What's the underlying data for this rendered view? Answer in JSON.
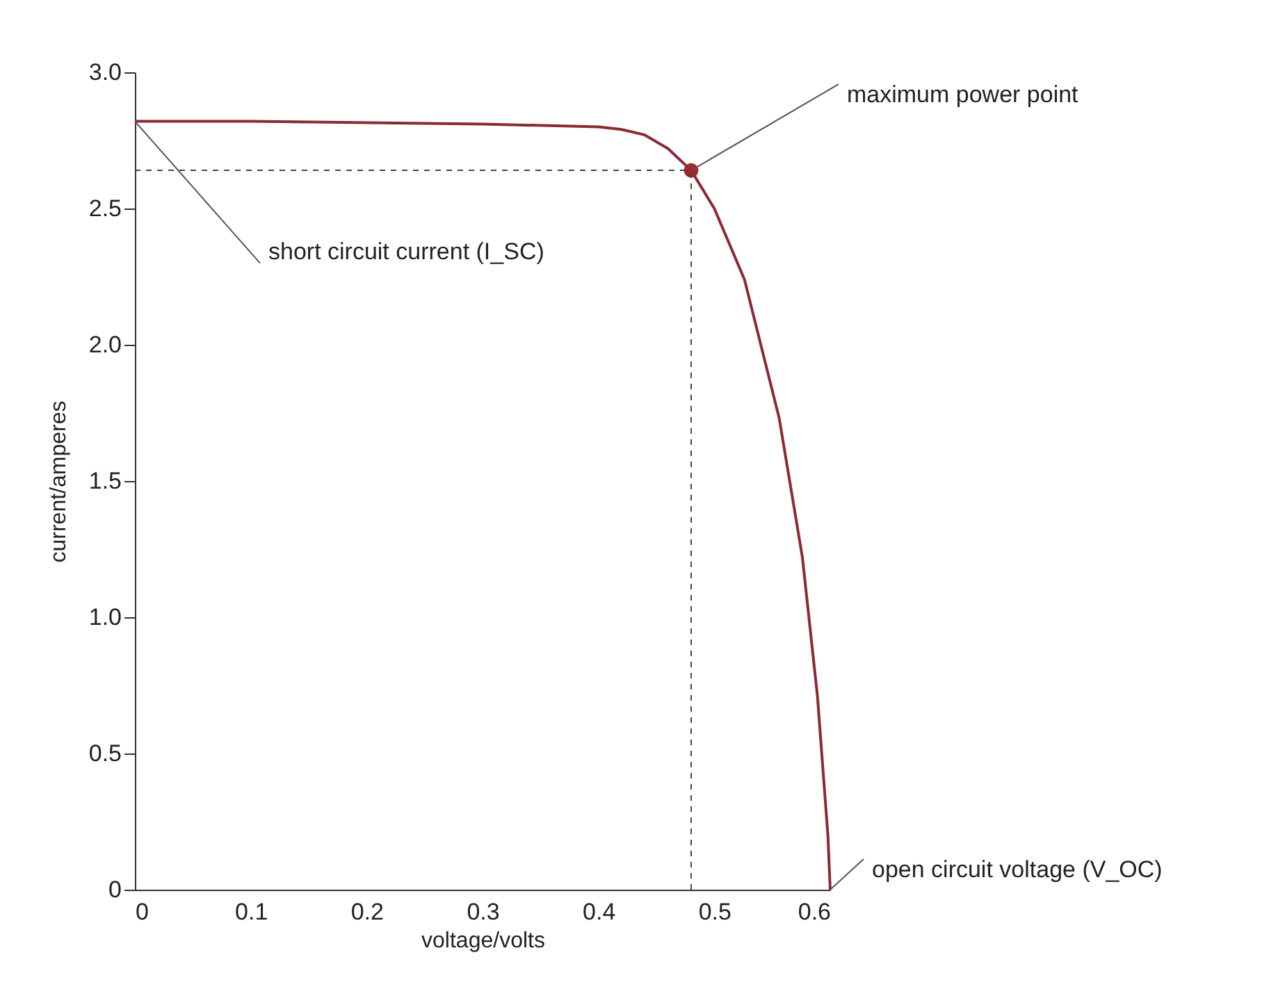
{
  "chart_data": {
    "type": "line",
    "xlabel": "voltage/volts",
    "ylabel": "current/amperes",
    "xlim": [
      0,
      0.6
    ],
    "ylim": [
      0,
      3.0
    ],
    "xticks": [
      0,
      0.1,
      0.2,
      0.3,
      0.4,
      0.5,
      0.6
    ],
    "yticks": [
      0,
      0.5,
      {
        "value": 1,
        "label": "1.0"
      },
      1.5,
      {
        "value": 2,
        "label": "2.0"
      },
      2.5,
      {
        "value": 3,
        "label": "3.0"
      }
    ],
    "grid": false,
    "marker": "none",
    "line_style": "solid",
    "series": [
      {
        "color": "#8b2a35",
        "x": [
          0,
          0.1,
          0.2,
          0.3,
          0.4,
          0.42,
          0.44,
          0.46,
          0.48,
          0.5,
          0.526,
          0.556,
          0.576,
          0.589,
          0.598,
          0.6
        ],
        "values": [
          2.82,
          2.82,
          2.815,
          2.81,
          2.8,
          2.79,
          2.77,
          2.72,
          2.64,
          2.5,
          2.24,
          1.73,
          1.22,
          0.71,
          0.2,
          0
        ]
      },
      {
        "type": "scatter",
        "marker": "circle",
        "color": "#a0282d",
        "x": [
          0.48
        ],
        "values": [
          2.64
        ]
      }
    ],
    "ref_lines": [
      {
        "axis": "y",
        "value": 2.64,
        "color": "#444444",
        "line_style": "dashed"
      },
      {
        "axis": "x",
        "value": 0.48,
        "color": "#444444",
        "line_style": "dashed"
      }
    ],
    "annotations": [
      {
        "text": "maximum power point",
        "x": 0.48,
        "y": 2.64
      },
      {
        "text": "short circuit current (I_SC)",
        "x": 0,
        "y": 2.82
      },
      {
        "text": "open circuit voltage (V_OC)",
        "x": 0.6,
        "y": 0
      }
    ]
  }
}
